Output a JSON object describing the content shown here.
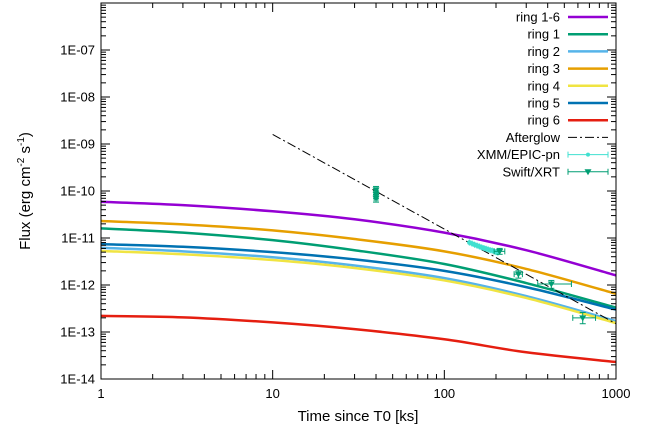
{
  "chart_data": {
    "type": "line",
    "xlabel": "Time since T0 [ks]",
    "ylabel_parts": [
      "Flux (erg cm",
      "-2",
      " s",
      "-1",
      ")"
    ],
    "x_scale": "log",
    "y_scale": "log",
    "xlim": [
      1,
      1000
    ],
    "ylim": [
      1e-14,
      1e-06
    ],
    "grid": false,
    "legend_position": "top-right",
    "x_ticks": [
      {
        "value": 1,
        "label": "1"
      },
      {
        "value": 10,
        "label": "10"
      },
      {
        "value": 100,
        "label": "100"
      },
      {
        "value": 1000,
        "label": "1000"
      }
    ],
    "y_ticks": [
      {
        "value": 1e-14,
        "label": "1E-14"
      },
      {
        "value": 1e-13,
        "label": "1E-13"
      },
      {
        "value": 1e-12,
        "label": "1E-12"
      },
      {
        "value": 1e-11,
        "label": "1E-11"
      },
      {
        "value": 1e-10,
        "label": "1E-10"
      },
      {
        "value": 1e-09,
        "label": "1E-09"
      },
      {
        "value": 1e-08,
        "label": "1E-08"
      },
      {
        "value": 1e-07,
        "label": "1E-07"
      }
    ],
    "series": [
      {
        "name": "ring 1-6",
        "color": "#9400d3",
        "x": [
          1,
          3,
          10,
          30,
          100,
          300,
          1000
        ],
        "y": [
          5.9e-11,
          5e-11,
          3.7e-11,
          2.5e-11,
          1.3e-11,
          5.5e-12,
          1.6e-12
        ]
      },
      {
        "name": "ring 1",
        "color": "#009e73",
        "x": [
          1,
          3,
          10,
          30,
          100,
          300,
          1000
        ],
        "y": [
          1.6e-11,
          1.3e-11,
          9e-12,
          5.5e-12,
          2.8e-12,
          1.1e-12,
          3.3e-13
        ]
      },
      {
        "name": "ring 2",
        "color": "#56b4e9",
        "x": [
          1,
          3,
          10,
          30,
          100,
          300,
          1000
        ],
        "y": [
          6.2e-12,
          5.2e-12,
          3.9e-12,
          2.6e-12,
          1.4e-12,
          5.8e-13,
          1.7e-13
        ]
      },
      {
        "name": "ring 3",
        "color": "#e69f00",
        "x": [
          1,
          3,
          10,
          30,
          100,
          300,
          1000
        ],
        "y": [
          2.3e-11,
          1.95e-11,
          1.45e-11,
          9.5e-12,
          5.2e-12,
          2.2e-12,
          6.5e-13
        ]
      },
      {
        "name": "ring 4",
        "color": "#f0e442",
        "x": [
          1,
          3,
          10,
          30,
          100,
          300,
          1000
        ],
        "y": [
          5.3e-12,
          4.5e-12,
          3.4e-12,
          2.3e-12,
          1.25e-12,
          5.3e-13,
          1.55e-13
        ]
      },
      {
        "name": "ring 5",
        "color": "#0072b2",
        "x": [
          1,
          3,
          10,
          30,
          100,
          300,
          1000
        ],
        "y": [
          7.4e-12,
          6.5e-12,
          5e-12,
          3.5e-12,
          2e-12,
          9e-13,
          3e-13
        ]
      },
      {
        "name": "ring 6",
        "color": "#e51e10",
        "x": [
          1,
          3,
          10,
          30,
          100,
          300,
          1000
        ],
        "y": [
          2.2e-13,
          2.05e-13,
          1.6e-13,
          1.15e-13,
          7e-14,
          3.7e-14,
          2.3e-14
        ]
      }
    ],
    "afterglow": {
      "name": "Afterglow",
      "color": "#000000",
      "x": [
        10,
        1000
      ],
      "y": [
        1.6e-09,
        1.5e-13
      ]
    },
    "xmm": {
      "name": "XMM/EPIC-pn",
      "color": "#40e0d0",
      "x": [
        140,
        145,
        150,
        155,
        160,
        165,
        170,
        175,
        180,
        185,
        190,
        195,
        200,
        205
      ],
      "y": [
        8e-12,
        7.6e-12,
        7.2e-12,
        6.9e-12,
        6.6e-12,
        6.3e-12,
        6.1e-12,
        5.9e-12,
        5.7e-12,
        5.5e-12,
        5.4e-12,
        5.2e-12,
        5e-12,
        4.9e-12
      ]
    },
    "swift": {
      "name": "Swift/XRT",
      "color": "#009e73",
      "points": [
        {
          "x": 40,
          "xerr": [
            39,
            41
          ],
          "y": 1.05e-10,
          "yerr": [
            8.5e-11,
            1.25e-10
          ]
        },
        {
          "x": 40,
          "xerr": [
            39,
            41
          ],
          "y": 8.5e-11,
          "yerr": [
            7e-11,
            1e-10
          ]
        },
        {
          "x": 40,
          "xerr": [
            39,
            41
          ],
          "y": 7e-11,
          "yerr": [
            5.8e-11,
            8.3e-11
          ]
        },
        {
          "x": 210,
          "xerr": [
            195,
            225
          ],
          "y": 5.2e-12,
          "yerr": [
            4.5e-12,
            6e-12
          ]
        },
        {
          "x": 270,
          "xerr": [
            255,
            285
          ],
          "y": 1.7e-12,
          "yerr": [
            1.4e-12,
            2e-12
          ]
        },
        {
          "x": 420,
          "xerr": [
            350,
            550
          ],
          "y": 1.05e-12,
          "yerr": [
            8.5e-13,
            1.25e-12
          ]
        },
        {
          "x": 640,
          "xerr": [
            560,
            760
          ],
          "y": 2e-13,
          "yerr": [
            1.5e-13,
            2.6e-13
          ]
        }
      ]
    }
  }
}
